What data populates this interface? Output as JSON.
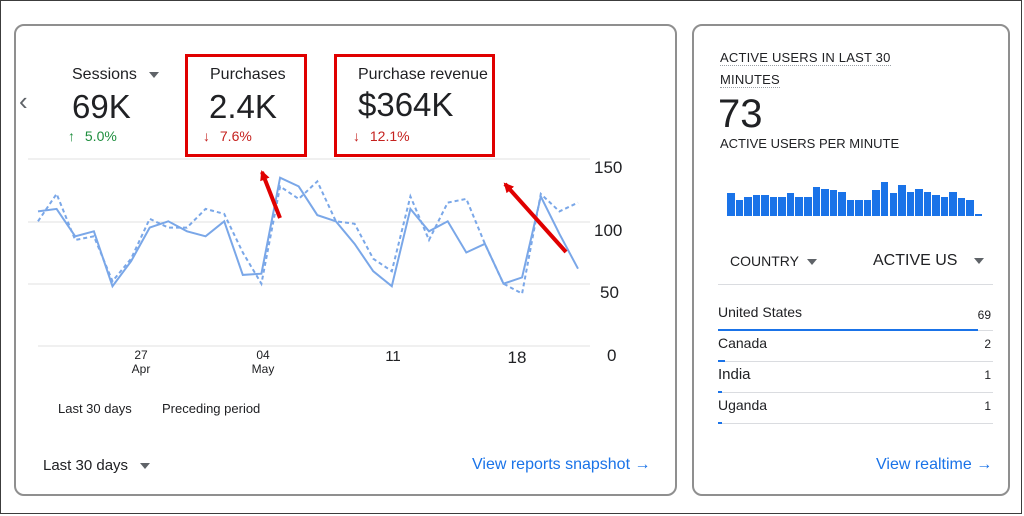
{
  "main_card": {
    "metrics": [
      {
        "label": "Sessions",
        "value": "69K",
        "delta": "5.0%",
        "direction": "up",
        "has_dropdown": true
      },
      {
        "label": "Purchases",
        "value": "2.4K",
        "delta": "7.6%",
        "direction": "down",
        "highlighted": true
      },
      {
        "label": "Purchase revenue",
        "value": "$364K",
        "delta": "12.1%",
        "direction": "down",
        "highlighted": true
      }
    ],
    "prev_arrow": "‹",
    "legend": {
      "current": "Last 30 days",
      "previous": "Preceding period"
    },
    "date_range_label": "Last 30 days",
    "view_link": "View reports snapshot →",
    "y_ticks": [
      "150",
      "100",
      "50",
      "0"
    ],
    "x_ticks": [
      {
        "day": "27",
        "month": "Apr"
      },
      {
        "day": "04",
        "month": "May"
      },
      {
        "day": "11",
        "month": ""
      },
      {
        "day": "18",
        "month": ""
      }
    ]
  },
  "chart_data": {
    "type": "line",
    "ylim": [
      0,
      150
    ],
    "y_ticks": [
      0,
      50,
      100,
      150
    ],
    "series": [
      {
        "name": "Last 30 days",
        "style": "solid",
        "color": "#7aa7e8",
        "values": [
          108,
          110,
          88,
          92,
          48,
          68,
          95,
          100,
          92,
          88,
          100,
          57,
          58,
          135,
          128,
          105,
          100,
          82,
          60,
          48,
          110,
          92,
          100,
          75,
          82,
          50,
          55,
          120,
          90,
          62
        ]
      },
      {
        "name": "Preceding period",
        "style": "dashed",
        "color": "#7aa7e8",
        "values": [
          100,
          122,
          85,
          88,
          52,
          70,
          102,
          95,
          95,
          110,
          106,
          75,
          50,
          128,
          118,
          132,
          100,
          98,
          70,
          60,
          120,
          85,
          115,
          118,
          82,
          50,
          42,
          122,
          108,
          115
        ]
      }
    ],
    "annotations": [
      {
        "type": "arrow",
        "color": "#e00000",
        "points_to": "Purchases"
      },
      {
        "type": "arrow",
        "color": "#e00000",
        "points_to": "Purchase revenue"
      }
    ]
  },
  "realtime_card": {
    "title_line1": "ACTIVE USERS IN LAST 30",
    "title_line2": "MINUTES",
    "value": "73",
    "subtitle": "ACTIVE USERS PER MINUTE",
    "per_minute": [
      14,
      10,
      12,
      13,
      13,
      12,
      12,
      14,
      12,
      12,
      18,
      17,
      16,
      15,
      10,
      10,
      10,
      16,
      21,
      14,
      19,
      15,
      17,
      15,
      13,
      12,
      15,
      11,
      10,
      1
    ],
    "table_headers": {
      "country": "COUNTRY",
      "users": "ACTIVE US"
    },
    "rows": [
      {
        "country": "United States",
        "users": "69",
        "share": 0.945
      },
      {
        "country": "Canada",
        "users": "2",
        "share": 0.027
      },
      {
        "country": "India",
        "users": "1",
        "share": 0.014
      },
      {
        "country": "Uganda",
        "users": "1",
        "share": 0.014
      }
    ],
    "view_link": "View realtime →"
  },
  "colors": {
    "accent": "#1a73e8",
    "up": "#1e8e3e",
    "down": "#c5221f",
    "highlight": "#e00000"
  }
}
